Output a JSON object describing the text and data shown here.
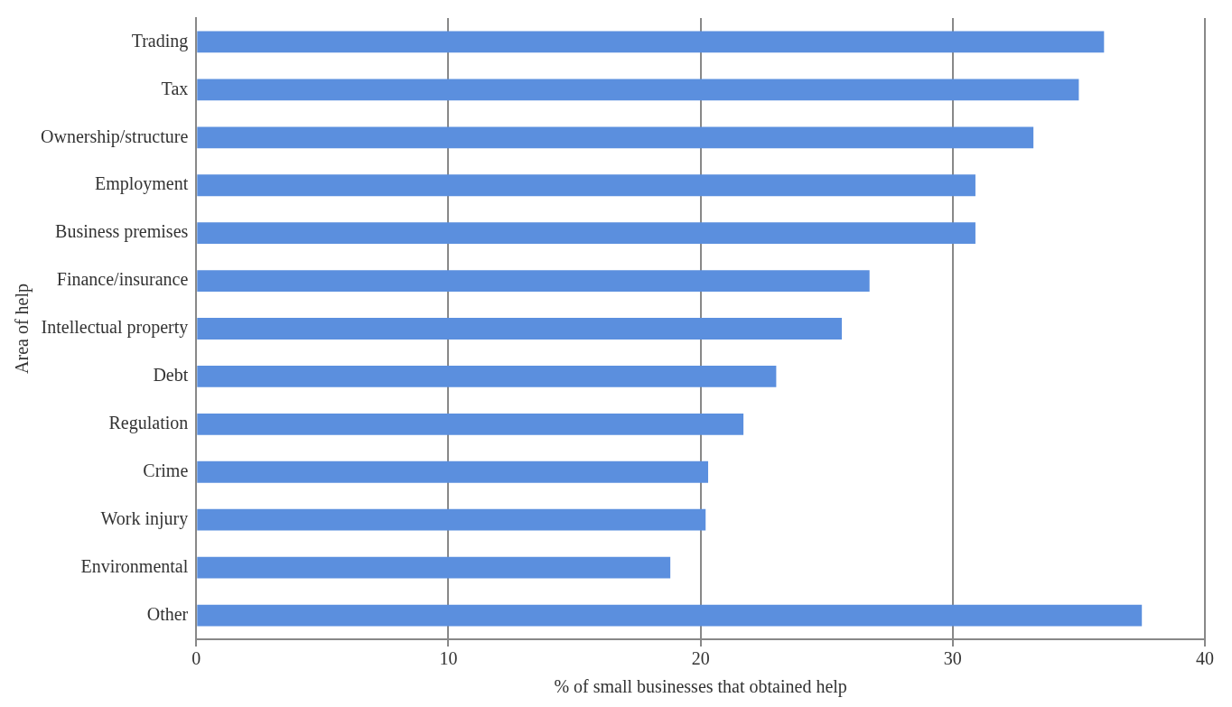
{
  "chart_data": {
    "type": "bar",
    "orientation": "horizontal",
    "xlabel": "% of small businesses that obtained help",
    "ylabel": "Area of help",
    "categories": [
      "Trading",
      "Tax",
      "Ownership/structure",
      "Employment",
      "Business premises",
      "Finance/insurance",
      "Intellectual property",
      "Debt",
      "Regulation",
      "Crime",
      "Work injury",
      "Environmental",
      "Other"
    ],
    "values": [
      36.0,
      35.0,
      33.2,
      30.9,
      30.9,
      26.7,
      25.6,
      23.0,
      21.7,
      20.3,
      20.2,
      18.8,
      37.5
    ],
    "color": "#5b8fde",
    "xlim": [
      0,
      40
    ],
    "xticks": [
      0,
      10,
      20,
      30,
      40
    ],
    "grid": "x",
    "legend": false
  }
}
